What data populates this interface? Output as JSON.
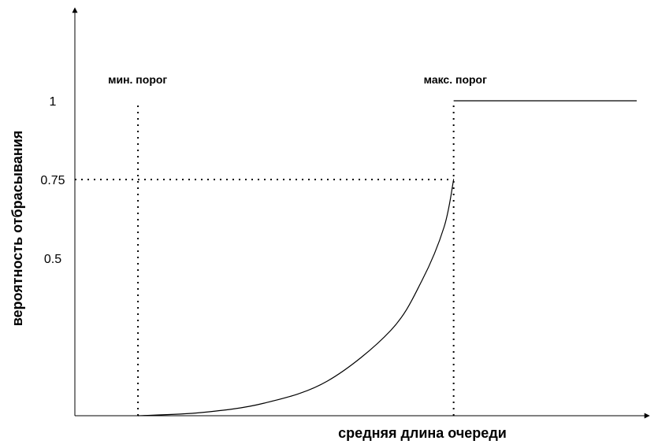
{
  "chart_data": {
    "type": "line",
    "title": "",
    "xlabel": "средняя длина очереди",
    "ylabel": "вероятность отбрасывания",
    "y_ticks": [
      {
        "value": 1,
        "label": "1"
      },
      {
        "value": 0.75,
        "label": "0.75"
      },
      {
        "value": 0.5,
        "label": "0.5"
      }
    ],
    "thresholds": [
      {
        "name": "min",
        "label": "мин. порог",
        "x": 1
      },
      {
        "name": "max",
        "label": "макс. порог",
        "x": 6
      }
    ],
    "xlim": [
      0,
      9.1
    ],
    "ylim": [
      0,
      1.25
    ],
    "series": [
      {
        "points": [
          {
            "x": 1.0,
            "y": 0.0
          },
          {
            "x": 2.0,
            "y": 0.01
          },
          {
            "x": 3.0,
            "y": 0.04
          },
          {
            "x": 4.0,
            "y": 0.11
          },
          {
            "x": 5.0,
            "y": 0.27
          },
          {
            "x": 5.5,
            "y": 0.43
          },
          {
            "x": 5.85,
            "y": 0.6
          },
          {
            "x": 6.0,
            "y": 0.75
          }
        ]
      },
      {
        "points": [
          {
            "x": 6.0,
            "y": 1.0
          },
          {
            "x": 8.9,
            "y": 1.0
          }
        ]
      }
    ],
    "reference_y": 0.75,
    "grid": false,
    "legend": "none"
  }
}
